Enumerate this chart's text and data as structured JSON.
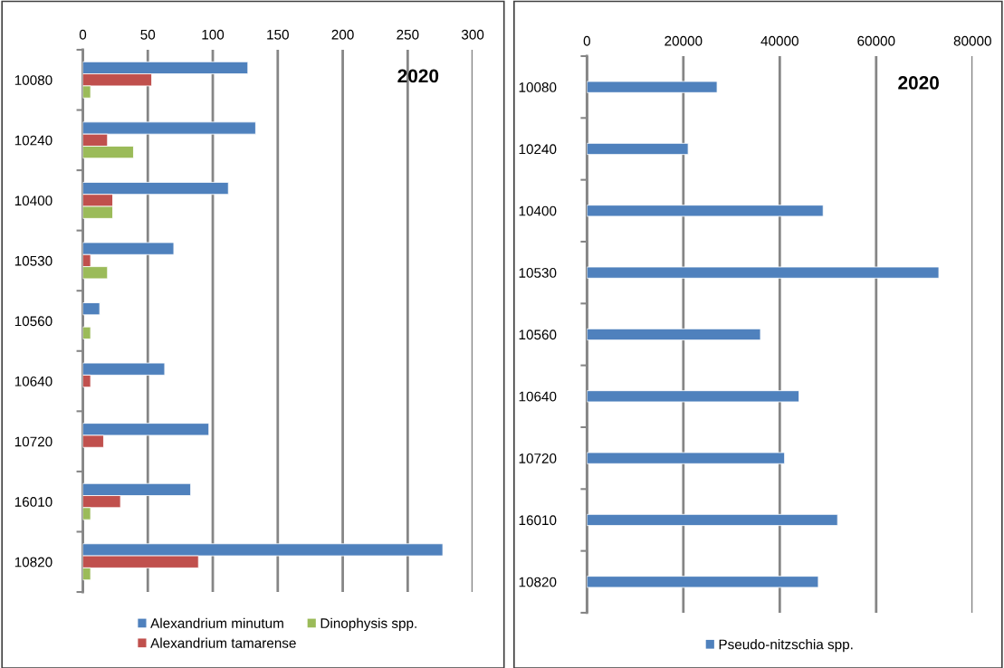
{
  "chart_data": [
    {
      "type": "bar",
      "orientation": "horizontal",
      "categories": [
        "10080",
        "10240",
        "10400",
        "10530",
        "10560",
        "10640",
        "10720",
        "16010",
        "10820"
      ],
      "series": [
        {
          "name": "Alexandrium minutum",
          "color": "#4f81bd",
          "values": [
            127,
            133,
            112,
            70,
            13,
            63,
            97,
            83,
            277
          ]
        },
        {
          "name": "Alexandrium tamarense",
          "color": "#c0504d",
          "values": [
            53,
            19,
            23,
            6,
            null,
            6,
            16,
            29,
            89
          ]
        },
        {
          "name": "Dinophysis spp.",
          "color": "#9bbb59",
          "values": [
            6,
            39,
            23,
            19,
            6,
            null,
            null,
            6,
            6
          ]
        }
      ],
      "xlim": [
        0,
        300
      ],
      "xticks": [
        0,
        50,
        100,
        150,
        200,
        250,
        300
      ],
      "grid": "x",
      "legend": "bottom",
      "annotations": [
        "2020"
      ]
    },
    {
      "type": "bar",
      "orientation": "horizontal",
      "categories": [
        "10080",
        "10240",
        "10400",
        "10530",
        "10560",
        "10640",
        "10720",
        "16010",
        "10820"
      ],
      "series": [
        {
          "name": "Pseudo-nitzschia spp.",
          "color": "#4f81bd",
          "values": [
            27000,
            21000,
            49000,
            73000,
            36000,
            44000,
            41000,
            52000,
            48000
          ]
        }
      ],
      "xlim": [
        0,
        80000
      ],
      "xticks": [
        0,
        20000,
        40000,
        60000,
        80000
      ],
      "grid": "x",
      "legend": "bottom",
      "annotations": [
        "2020"
      ]
    }
  ]
}
